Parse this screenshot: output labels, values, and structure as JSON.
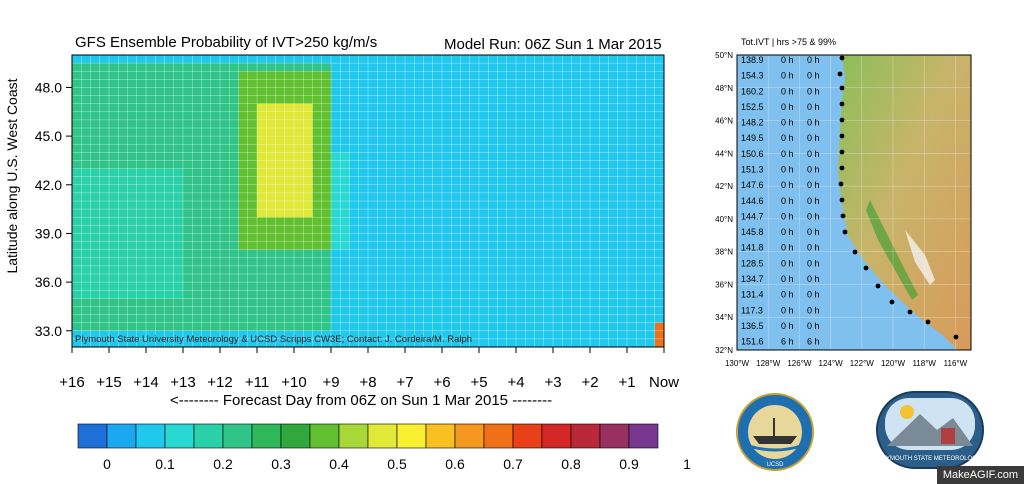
{
  "heatmap_panel": {
    "title": "GFS Ensemble Probability of IVT>250 kg/m/s",
    "model_run": "Model Run: 06Z Sun 1 Mar 2015",
    "ylabel": "Latitude along U.S. West Coast",
    "xlabel": "<-------- Forecast Day from 06Z on Sun 1 Mar 2015 --------",
    "credit": "Plymouth State University Meteorology & UCSD Scripps CW3E; Contact: J. Cordeira/M. Ralph",
    "y_ticks": [
      "48.0",
      "45.0",
      "42.0",
      "39.0",
      "36.0",
      "33.0"
    ],
    "x_ticks": [
      "+16",
      "+15",
      "+14",
      "+13",
      "+12",
      "+11",
      "+10",
      "+9",
      "+8",
      "+7",
      "+6",
      "+5",
      "+4",
      "+3",
      "+2",
      "+1",
      "Now"
    ]
  },
  "colorbar": {
    "labels": [
      "0",
      "0.1",
      "0.2",
      "0.3",
      "0.4",
      "0.5",
      "0.6",
      "0.7",
      "0.8",
      "0.9",
      "1"
    ],
    "colors": [
      "#1f6fd8",
      "#1aa8f0",
      "#20c8ee",
      "#28d8d2",
      "#2ad0a8",
      "#30c488",
      "#2fb85a",
      "#30a83c",
      "#60c030",
      "#a8d838",
      "#e0e838",
      "#f8f030",
      "#f8c020",
      "#f49820",
      "#f07018",
      "#e84018",
      "#d42828",
      "#b82838",
      "#983060",
      "#783890"
    ]
  },
  "chart_data": {
    "type": "heatmap",
    "title": "GFS Ensemble Probability of IVT>250 kg/m/s",
    "xlabel": "<-------- Forecast Day from 06Z on Sun 1 Mar 2015 --------",
    "ylabel": "Latitude along U.S. West Coast",
    "x_range_days": [
      16,
      0
    ],
    "y_range_lat": [
      32.0,
      50.0
    ],
    "value_range": [
      0,
      1
    ],
    "regions": [
      {
        "day_from": 16.0,
        "day_to": 9.0,
        "lat_from": 33.0,
        "lat_to": 49.5,
        "value": 0.25
      },
      {
        "day_from": 11.5,
        "day_to": 9.0,
        "lat_from": 38.0,
        "lat_to": 49.0,
        "value": 0.4
      },
      {
        "day_from": 11.0,
        "day_to": 9.5,
        "lat_from": 40.0,
        "lat_to": 47.0,
        "value": 0.5
      },
      {
        "day_from": 16.0,
        "day_to": 13.0,
        "lat_from": 35.0,
        "lat_to": 43.0,
        "value": 0.2
      },
      {
        "day_from": 9.0,
        "day_to": 8.5,
        "lat_from": 38.0,
        "lat_to": 44.0,
        "value": 0.15
      },
      {
        "day_from": 5.5,
        "day_to": 5.0,
        "lat_from": 45.0,
        "lat_to": 49.0,
        "value": 0.1
      },
      {
        "day_from": 0.25,
        "day_to": 0.0,
        "lat_from": 32.0,
        "lat_to": 33.5,
        "value": 0.7
      }
    ]
  },
  "map_panel": {
    "title": "Tot.IVT | hrs >75 & 99%",
    "lat_labels": [
      "50°N",
      "48°N",
      "46°N",
      "44°N",
      "42°N",
      "40°N",
      "38°N",
      "36°N",
      "34°N",
      "32°N"
    ],
    "lon_labels": [
      "130°W",
      "128°W",
      "126°W",
      "124°W",
      "122°W",
      "120°W",
      "118°W",
      "116°W"
    ],
    "table_rows": [
      {
        "ivt": "138.9",
        "h75": "0 h",
        "h99": "0 h"
      },
      {
        "ivt": "154.3",
        "h75": "0 h",
        "h99": "0 h"
      },
      {
        "ivt": "160.2",
        "h75": "0 h",
        "h99": "0 h"
      },
      {
        "ivt": "152.5",
        "h75": "0 h",
        "h99": "0 h"
      },
      {
        "ivt": "148.2",
        "h75": "0 h",
        "h99": "0 h"
      },
      {
        "ivt": "149.5",
        "h75": "0 h",
        "h99": "0 h"
      },
      {
        "ivt": "150.6",
        "h75": "0 h",
        "h99": "0 h"
      },
      {
        "ivt": "151.3",
        "h75": "0 h",
        "h99": "0 h"
      },
      {
        "ivt": "147.6",
        "h75": "0 h",
        "h99": "0 h"
      },
      {
        "ivt": "144.6",
        "h75": "0 h",
        "h99": "0 h"
      },
      {
        "ivt": "144.7",
        "h75": "0 h",
        "h99": "0 h"
      },
      {
        "ivt": "145.8",
        "h75": "0 h",
        "h99": "0 h"
      },
      {
        "ivt": "141.8",
        "h75": "0 h",
        "h99": "0 h"
      },
      {
        "ivt": "128.5",
        "h75": "0 h",
        "h99": "0 h"
      },
      {
        "ivt": "134.7",
        "h75": "0 h",
        "h99": "0 h"
      },
      {
        "ivt": "131.4",
        "h75": "0 h",
        "h99": "0 h"
      },
      {
        "ivt": "117.3",
        "h75": "0 h",
        "h99": "0 h"
      },
      {
        "ivt": "136.5",
        "h75": "0 h",
        "h99": "0 h"
      },
      {
        "ivt": "151.6",
        "h75": "6 h",
        "h99": "6 h"
      }
    ]
  },
  "logos": {
    "scripps_text": "SCRIPPS INSTITUTION OF OCEANOGRAPHY",
    "scripps_sub": "UCSD",
    "plymouth_text": "PLYMOUTH STATE METEOROLOGY"
  },
  "watermark": "MakeAGIF.com"
}
